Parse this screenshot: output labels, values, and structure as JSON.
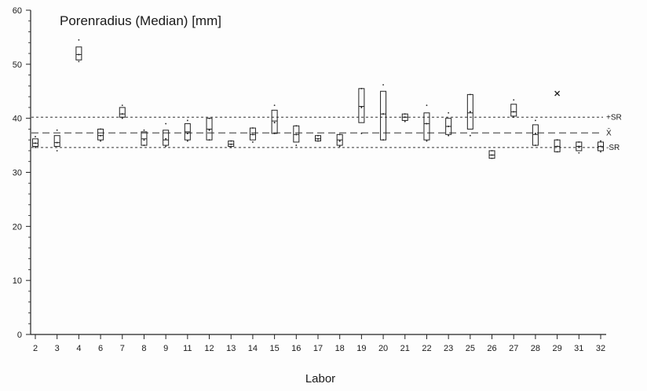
{
  "chart_data": {
    "type": "box",
    "title": "Porenradius (Median) [mm]",
    "xlabel": "Labor",
    "ylabel": "",
    "ylim": [
      0,
      60
    ],
    "yticks": [
      0,
      10,
      20,
      30,
      40,
      50,
      60
    ],
    "categories": [
      "2",
      "3",
      "4",
      "6",
      "7",
      "8",
      "9",
      "11",
      "12",
      "13",
      "14",
      "15",
      "16",
      "17",
      "18",
      "19",
      "20",
      "21",
      "22",
      "23",
      "25",
      "26",
      "27",
      "28",
      "29",
      "31",
      "32"
    ],
    "boxes": [
      {
        "q1": 34.8,
        "median": 35.4,
        "q3": 36.2,
        "min": 34.6,
        "max": 36.6,
        "mean": 35.4
      },
      {
        "q1": 34.8,
        "median": 35.5,
        "q3": 36.8,
        "min": 34.0,
        "max": 37.8,
        "mean": 35.5
      },
      {
        "q1": 50.8,
        "median": 51.8,
        "q3": 53.2,
        "min": 50.5,
        "max": 54.5,
        "mean": 51.8
      },
      {
        "q1": 36.0,
        "median": 36.8,
        "q3": 38.0,
        "min": 35.8,
        "max": 38.0,
        "mean": 36.8
      },
      {
        "q1": 40.2,
        "median": 40.8,
        "q3": 42.0,
        "min": 40.0,
        "max": 42.4,
        "mean": 40.8
      },
      {
        "q1": 35.0,
        "median": 36.2,
        "q3": 37.5,
        "min": 35.0,
        "max": 37.8,
        "mean": 36.0
      },
      {
        "q1": 35.0,
        "median": 36.0,
        "q3": 37.8,
        "min": 34.8,
        "max": 39.0,
        "mean": 36.2
      },
      {
        "q1": 36.0,
        "median": 37.5,
        "q3": 39.0,
        "min": 35.8,
        "max": 39.6,
        "mean": 37.2
      },
      {
        "q1": 36.0,
        "median": 38.0,
        "q3": 40.0,
        "min": 36.0,
        "max": 40.0,
        "mean": 37.8
      },
      {
        "q1": 34.8,
        "median": 35.2,
        "q3": 35.8,
        "min": 34.6,
        "max": 35.8,
        "mean": 35.2
      },
      {
        "q1": 36.0,
        "median": 37.0,
        "q3": 38.2,
        "min": 35.6,
        "max": 38.2,
        "mean": 37.0
      },
      {
        "q1": 37.2,
        "median": 39.5,
        "q3": 41.5,
        "min": 37.2,
        "max": 42.4,
        "mean": 39.2
      },
      {
        "q1": 35.6,
        "median": 37.0,
        "q3": 38.6,
        "min": 35.0,
        "max": 38.6,
        "mean": 37.0
      },
      {
        "q1": 35.8,
        "median": 36.2,
        "q3": 36.8,
        "min": 35.8,
        "max": 36.8,
        "mean": 36.2
      },
      {
        "q1": 35.0,
        "median": 36.0,
        "q3": 37.0,
        "min": 34.8,
        "max": 37.0,
        "mean": 35.8
      },
      {
        "q1": 39.2,
        "median": 42.2,
        "q3": 45.5,
        "min": 37.2,
        "max": 45.5,
        "mean": 42.0
      },
      {
        "q1": 36.0,
        "median": 40.8,
        "q3": 45.0,
        "min": 36.0,
        "max": 46.2,
        "mean": 40.8
      },
      {
        "q1": 39.6,
        "median": 40.2,
        "q3": 40.8,
        "min": 39.4,
        "max": 40.8,
        "mean": 40.2
      },
      {
        "q1": 36.0,
        "median": 39.0,
        "q3": 41.0,
        "min": 35.8,
        "max": 42.4,
        "mean": 39.0
      },
      {
        "q1": 37.0,
        "median": 38.5,
        "q3": 40.0,
        "min": 36.8,
        "max": 41.0,
        "mean": 38.5
      },
      {
        "q1": 38.0,
        "median": 41.0,
        "q3": 44.4,
        "min": 36.8,
        "max": 44.4,
        "mean": 41.2
      },
      {
        "q1": 32.6,
        "median": 33.2,
        "q3": 34.0,
        "min": 32.6,
        "max": 34.0,
        "mean": 33.2
      },
      {
        "q1": 40.4,
        "median": 41.2,
        "q3": 42.6,
        "min": 40.2,
        "max": 43.4,
        "mean": 41.2
      },
      {
        "q1": 35.0,
        "median": 37.0,
        "q3": 38.8,
        "min": 35.0,
        "max": 39.6,
        "mean": 37.2
      },
      {
        "q1": 33.8,
        "median": 34.8,
        "q3": 36.0,
        "min": 33.8,
        "max": 36.0,
        "mean": 34.8,
        "outlier": 44.6
      },
      {
        "q1": 34.0,
        "median": 34.8,
        "q3": 35.6,
        "min": 33.6,
        "max": 35.6,
        "mean": 34.8
      },
      {
        "q1": 34.0,
        "median": 34.8,
        "q3": 35.6,
        "min": 33.8,
        "max": 35.8,
        "mean": 34.8
      }
    ],
    "reference_lines": [
      {
        "label": "+SR",
        "value": 40.2,
        "style": "dotted"
      },
      {
        "label": "X̄",
        "value": 37.3,
        "style": "dashed"
      },
      {
        "label": "-SR",
        "value": 34.6,
        "style": "dotted"
      }
    ],
    "grid": false,
    "legend": "none"
  }
}
